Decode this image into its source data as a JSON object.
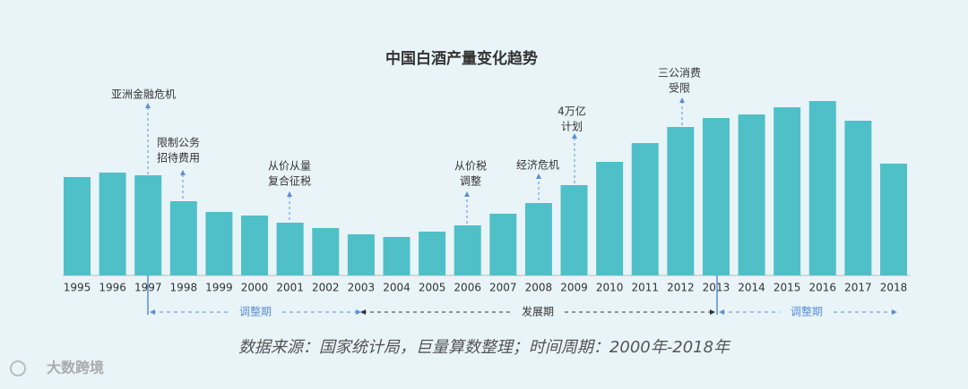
{
  "chart_data": {
    "type": "bar",
    "title": "中国白酒产量变化趋势",
    "categories": [
      "1995",
      "1996",
      "1997",
      "1998",
      "1999",
      "2000",
      "2001",
      "2002",
      "2003",
      "2004",
      "2005",
      "2006",
      "2007",
      "2008",
      "2009",
      "2010",
      "2011",
      "2012",
      "2013",
      "2014",
      "2015",
      "2016",
      "2017",
      "2018"
    ],
    "values": [
      110,
      115,
      112,
      83,
      71,
      67,
      59,
      53,
      46,
      43,
      49,
      56,
      69,
      81,
      101,
      127,
      148,
      166,
      176,
      180,
      188,
      195,
      173,
      125
    ],
    "color": "#4fc0c8",
    "annotations": [
      {
        "lines": [
          "亚洲金融危机"
        ]
      },
      {
        "lines": [
          "限制公务",
          "招待费用"
        ]
      },
      {
        "lines": [
          "从价从量",
          "复合征税"
        ]
      },
      {
        "lines": [
          "从价税",
          "调整"
        ]
      },
      {
        "lines": [
          "经济危机"
        ]
      },
      {
        "lines": [
          "4万亿",
          "计划"
        ]
      },
      {
        "lines": [
          "三公消费",
          "受限"
        ]
      }
    ],
    "periods": [
      "调整期",
      "发展期",
      "调整期"
    ],
    "source": "数据来源：国家统计局，巨量算数整理；时间周期：2000年-2018年",
    "watermark": "大数跨境"
  }
}
